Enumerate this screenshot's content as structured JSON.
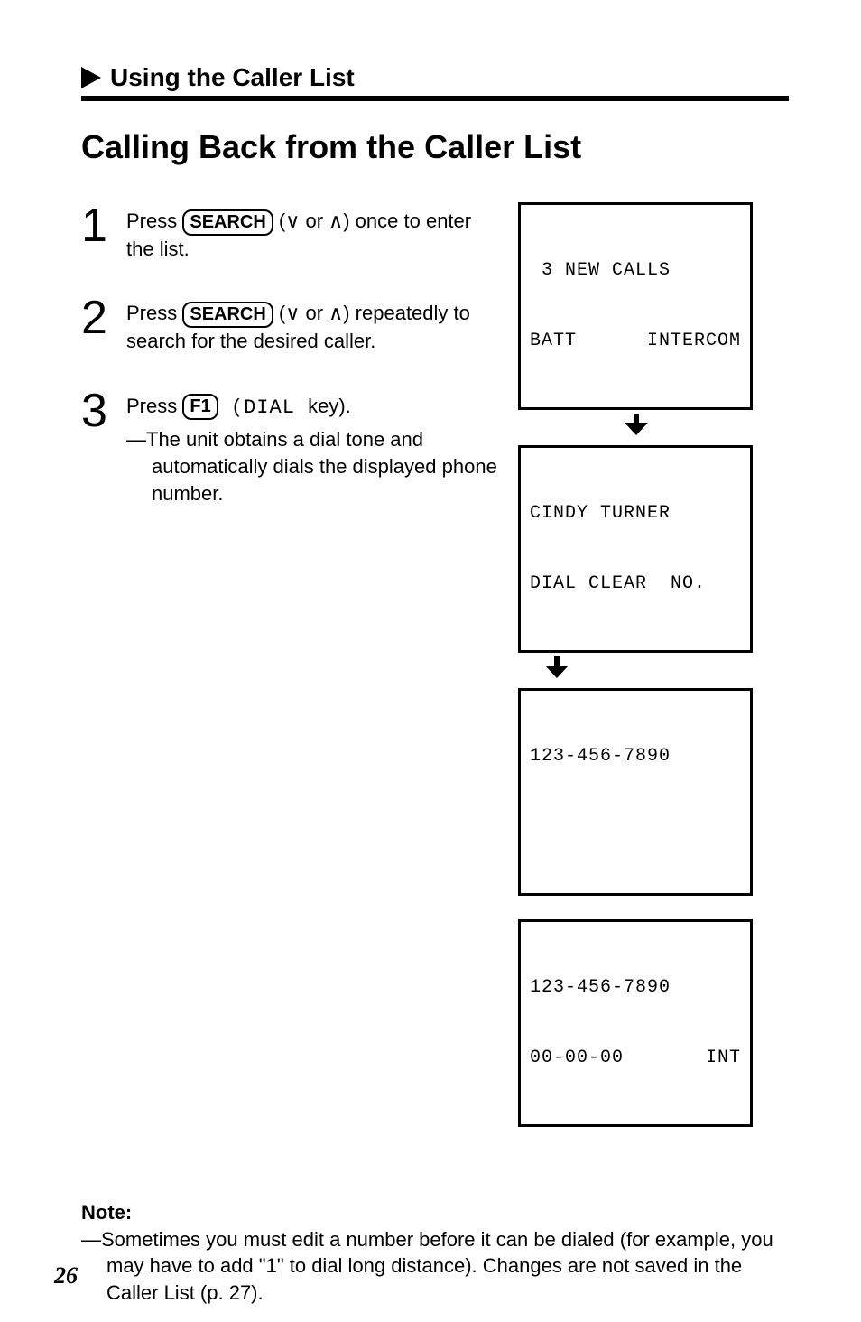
{
  "section": {
    "title": "Using the Caller List"
  },
  "page": {
    "title": "Calling Back from the Caller List",
    "number": "26"
  },
  "steps": [
    {
      "num": "1",
      "pre": "Press ",
      "key": "SEARCH",
      "post": " (∨ or ∧) once to enter the list."
    },
    {
      "num": "2",
      "pre": "Press ",
      "key": "SEARCH",
      "post": " (∨ or ∧) repeatedly to search for the desired caller."
    },
    {
      "num": "3",
      "pre": "Press ",
      "key": "F1",
      "post_mono": " (DIAL ",
      "post": "key).",
      "sub": "—The unit obtains a dial tone and automatically dials the displayed phone number."
    }
  ],
  "lcd": {
    "box1": {
      "line1": " 3 NEW CALLS",
      "line2a": "BATT",
      "line2b": "INTERCOM"
    },
    "box2": {
      "line1": "CINDY TURNER",
      "line2": "DIAL CLEAR  NO."
    },
    "box3": {
      "line1": "123-456-7890",
      "line2": " "
    },
    "box4": {
      "line1": "123-456-7890",
      "line2a": "00-00-00",
      "line2b": "INT"
    }
  },
  "note": {
    "title": "Note:",
    "body": "—Sometimes you must edit a number before it can be dialed (for example, you may have to add \"1\" to dial long distance). Changes are not saved in the Caller List (p. 27)."
  }
}
